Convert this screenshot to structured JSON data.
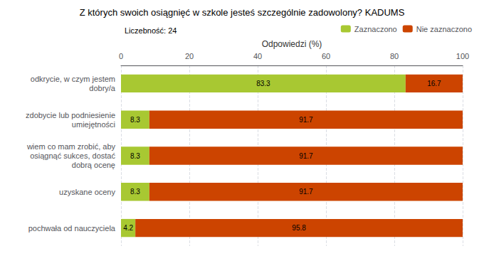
{
  "chart_data": {
    "type": "bar",
    "orientation": "horizontal",
    "stacked": true,
    "title": "Z których swoich osiągnięć w szkole jesteś szczególnie zadowolony? KADUMS",
    "subtitle": "Liczebność: 24",
    "xlabel": "Odpowiedzi (%)",
    "categories": [
      "pochwała od nauczyciela",
      "uzyskane oceny",
      "wiem co mam zrobić, aby\nosiągnąć sukces, dostać\ndobrą ocenę",
      "zdobycie lub podniesienie\numiejętności",
      "odkrycie, w czym jestem\ndobry/a"
    ],
    "series": [
      {
        "name": "Zaznaczono",
        "color": "#a8c832",
        "values": [
          4.2,
          8.3,
          8.3,
          8.3,
          83.3
        ]
      },
      {
        "name": "Nie zaznaczono",
        "color": "#cc4400",
        "values": [
          95.8,
          91.7,
          91.7,
          91.7,
          16.7
        ]
      }
    ],
    "xlim": [
      0,
      100
    ],
    "xticks": [
      0,
      20,
      40,
      60,
      80,
      100
    ],
    "grid": true,
    "legend": "upper right",
    "data_labels": true
  }
}
